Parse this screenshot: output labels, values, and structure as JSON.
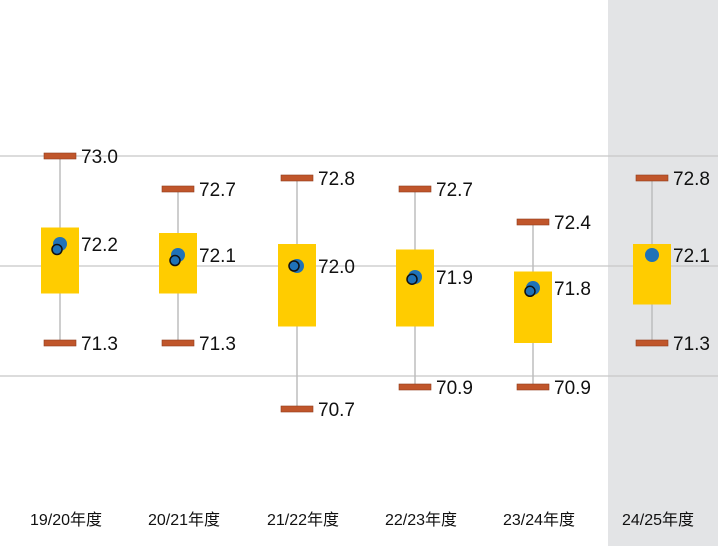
{
  "chart_data": {
    "type": "box",
    "categories": [
      "19/20年度",
      "20/21年度",
      "21/22年度",
      "22/23年度",
      "23/24年度",
      "24/25年度"
    ],
    "max": [
      73.0,
      72.7,
      72.8,
      72.7,
      72.4,
      72.8
    ],
    "min": [
      71.3,
      71.3,
      70.7,
      70.9,
      70.9,
      71.3
    ],
    "q1": [
      71.75,
      71.75,
      71.45,
      71.45,
      71.3,
      71.65
    ],
    "q3": [
      72.35,
      72.3,
      72.2,
      72.15,
      71.95,
      72.2
    ],
    "mean": [
      72.2,
      72.1,
      72.0,
      71.9,
      71.8,
      72.1
    ],
    "median": [
      72.15,
      72.05,
      72.0,
      71.88,
      71.77,
      null
    ],
    "max_labels": [
      "73.0",
      "72.7",
      "72.8",
      "72.7",
      "72.4",
      "72.8"
    ],
    "min_labels": [
      "71.3",
      "71.3",
      "70.7",
      "70.9",
      "70.9",
      "71.3"
    ],
    "mean_labels": [
      "72.2",
      "72.1",
      "72.0",
      "71.9",
      "71.8",
      "72.1"
    ],
    "gridlines": [
      73.0,
      72.0,
      71.0
    ],
    "highlight_category": "24/25年度",
    "colors": {
      "box": "#ffcc00",
      "whisker_cap": "#c0562b",
      "mean_marker": "#1f72b8",
      "median_marker": "#1f72b8",
      "whisker_line": "#bdbdbd",
      "gridline": "#c8c8c8",
      "highlight_band": "#e3e4e6",
      "label": "#111111"
    }
  }
}
